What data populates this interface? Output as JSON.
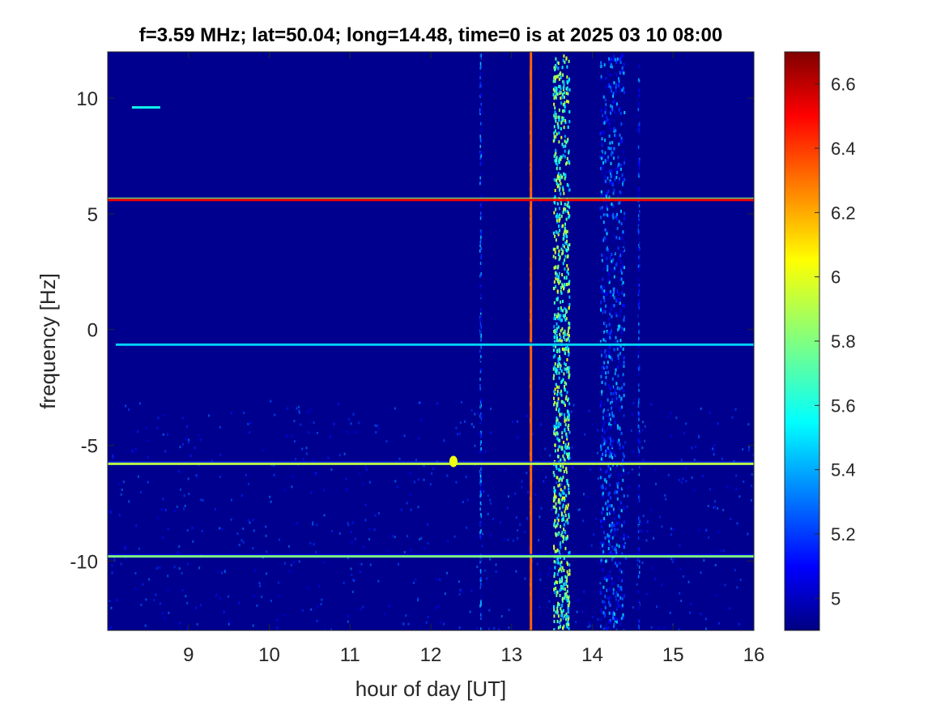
{
  "chart_data": {
    "type": "heatmap",
    "title": "f=3.59 MHz;  lat=50.04; long=14.48, time=0 is at 2025 03 10 08:00",
    "xlabel": "hour of day [UT]",
    "ylabel": "frequency [Hz]",
    "xlim": [
      8,
      16
    ],
    "ylim": [
      -13,
      12
    ],
    "xticks": [
      9,
      10,
      11,
      12,
      13,
      14,
      15,
      16
    ],
    "xtick_labels": [
      "9",
      "10",
      "11",
      "12",
      "13",
      "14",
      "15",
      "16"
    ],
    "yticks": [
      10,
      5,
      0,
      -5,
      -10
    ],
    "ytick_labels": [
      "10",
      "5",
      "0",
      "-5",
      "-10"
    ],
    "colorbar": {
      "colormap": "jet",
      "clim": [
        4.9,
        6.7
      ],
      "ticks": [
        5,
        5.2,
        5.4,
        5.6,
        5.8,
        6,
        6.2,
        6.4,
        6.6
      ],
      "tick_labels": [
        "5",
        "5.2",
        "5.4",
        "5.6",
        "5.8",
        "6",
        "6.2",
        "6.4",
        "6.6"
      ]
    },
    "background_value": 4.95,
    "horizontal_traces": [
      {
        "freq_hz": 5.6,
        "x_start": 8.0,
        "x_end": 16.0,
        "level": 6.5
      },
      {
        "freq_hz": -0.65,
        "x_start": 8.1,
        "x_end": 16.0,
        "level": 5.5
      },
      {
        "freq_hz": -5.8,
        "x_start": 8.0,
        "x_end": 16.0,
        "level": 5.9
      },
      {
        "freq_hz": -9.8,
        "x_start": 8.0,
        "x_end": 16.0,
        "level": 5.8
      },
      {
        "freq_hz": 9.6,
        "x_start": 8.3,
        "x_end": 8.65,
        "level": 5.6
      }
    ],
    "vertical_traces": [
      {
        "hour": 13.24,
        "level": 6.3,
        "note": ""
      },
      {
        "hour": 12.62,
        "level": 5.5
      },
      {
        "hour": 13.62,
        "level": 6.0,
        "spread_hours": 0.2
      },
      {
        "hour": 14.25,
        "level": 5.5,
        "spread_hours": 0.3
      },
      {
        "hour": 14.58,
        "level": 5.4
      }
    ],
    "spots": [
      {
        "hour": 12.28,
        "freq_hz": -5.7,
        "level": 6.0
      }
    ],
    "colors": {
      "background": "#00008f",
      "axes": "#262626",
      "figure_bg": "#ffffff"
    }
  }
}
